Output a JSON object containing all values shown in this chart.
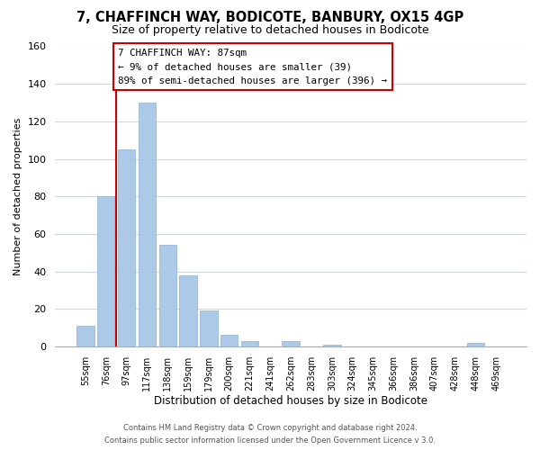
{
  "title": "7, CHAFFINCH WAY, BODICOTE, BANBURY, OX15 4GP",
  "subtitle": "Size of property relative to detached houses in Bodicote",
  "xlabel": "Distribution of detached houses by size in Bodicote",
  "ylabel": "Number of detached properties",
  "bar_labels": [
    "55sqm",
    "76sqm",
    "97sqm",
    "117sqm",
    "138sqm",
    "159sqm",
    "179sqm",
    "200sqm",
    "221sqm",
    "241sqm",
    "262sqm",
    "283sqm",
    "303sqm",
    "324sqm",
    "345sqm",
    "366sqm",
    "386sqm",
    "407sqm",
    "428sqm",
    "448sqm",
    "469sqm"
  ],
  "bar_heights": [
    11,
    80,
    105,
    130,
    54,
    38,
    19,
    6,
    3,
    0,
    3,
    0,
    1,
    0,
    0,
    0,
    0,
    0,
    0,
    2,
    0
  ],
  "bar_color": "#adc9e8",
  "vline_color": "#cc0000",
  "ylim": [
    0,
    160
  ],
  "yticks": [
    0,
    20,
    40,
    60,
    80,
    100,
    120,
    140,
    160
  ],
  "annotation_title": "7 CHAFFINCH WAY: 87sqm",
  "annotation_line1": "← 9% of detached houses are smaller (39)",
  "annotation_line2": "89% of semi-detached houses are larger (396) →",
  "annotation_box_color": "#ffffff",
  "annotation_box_edge": "#cc0000",
  "footer_line1": "Contains HM Land Registry data © Crown copyright and database right 2024.",
  "footer_line2": "Contains public sector information licensed under the Open Government Licence v 3.0.",
  "background_color": "#ffffff",
  "grid_color": "#d0d8e4"
}
